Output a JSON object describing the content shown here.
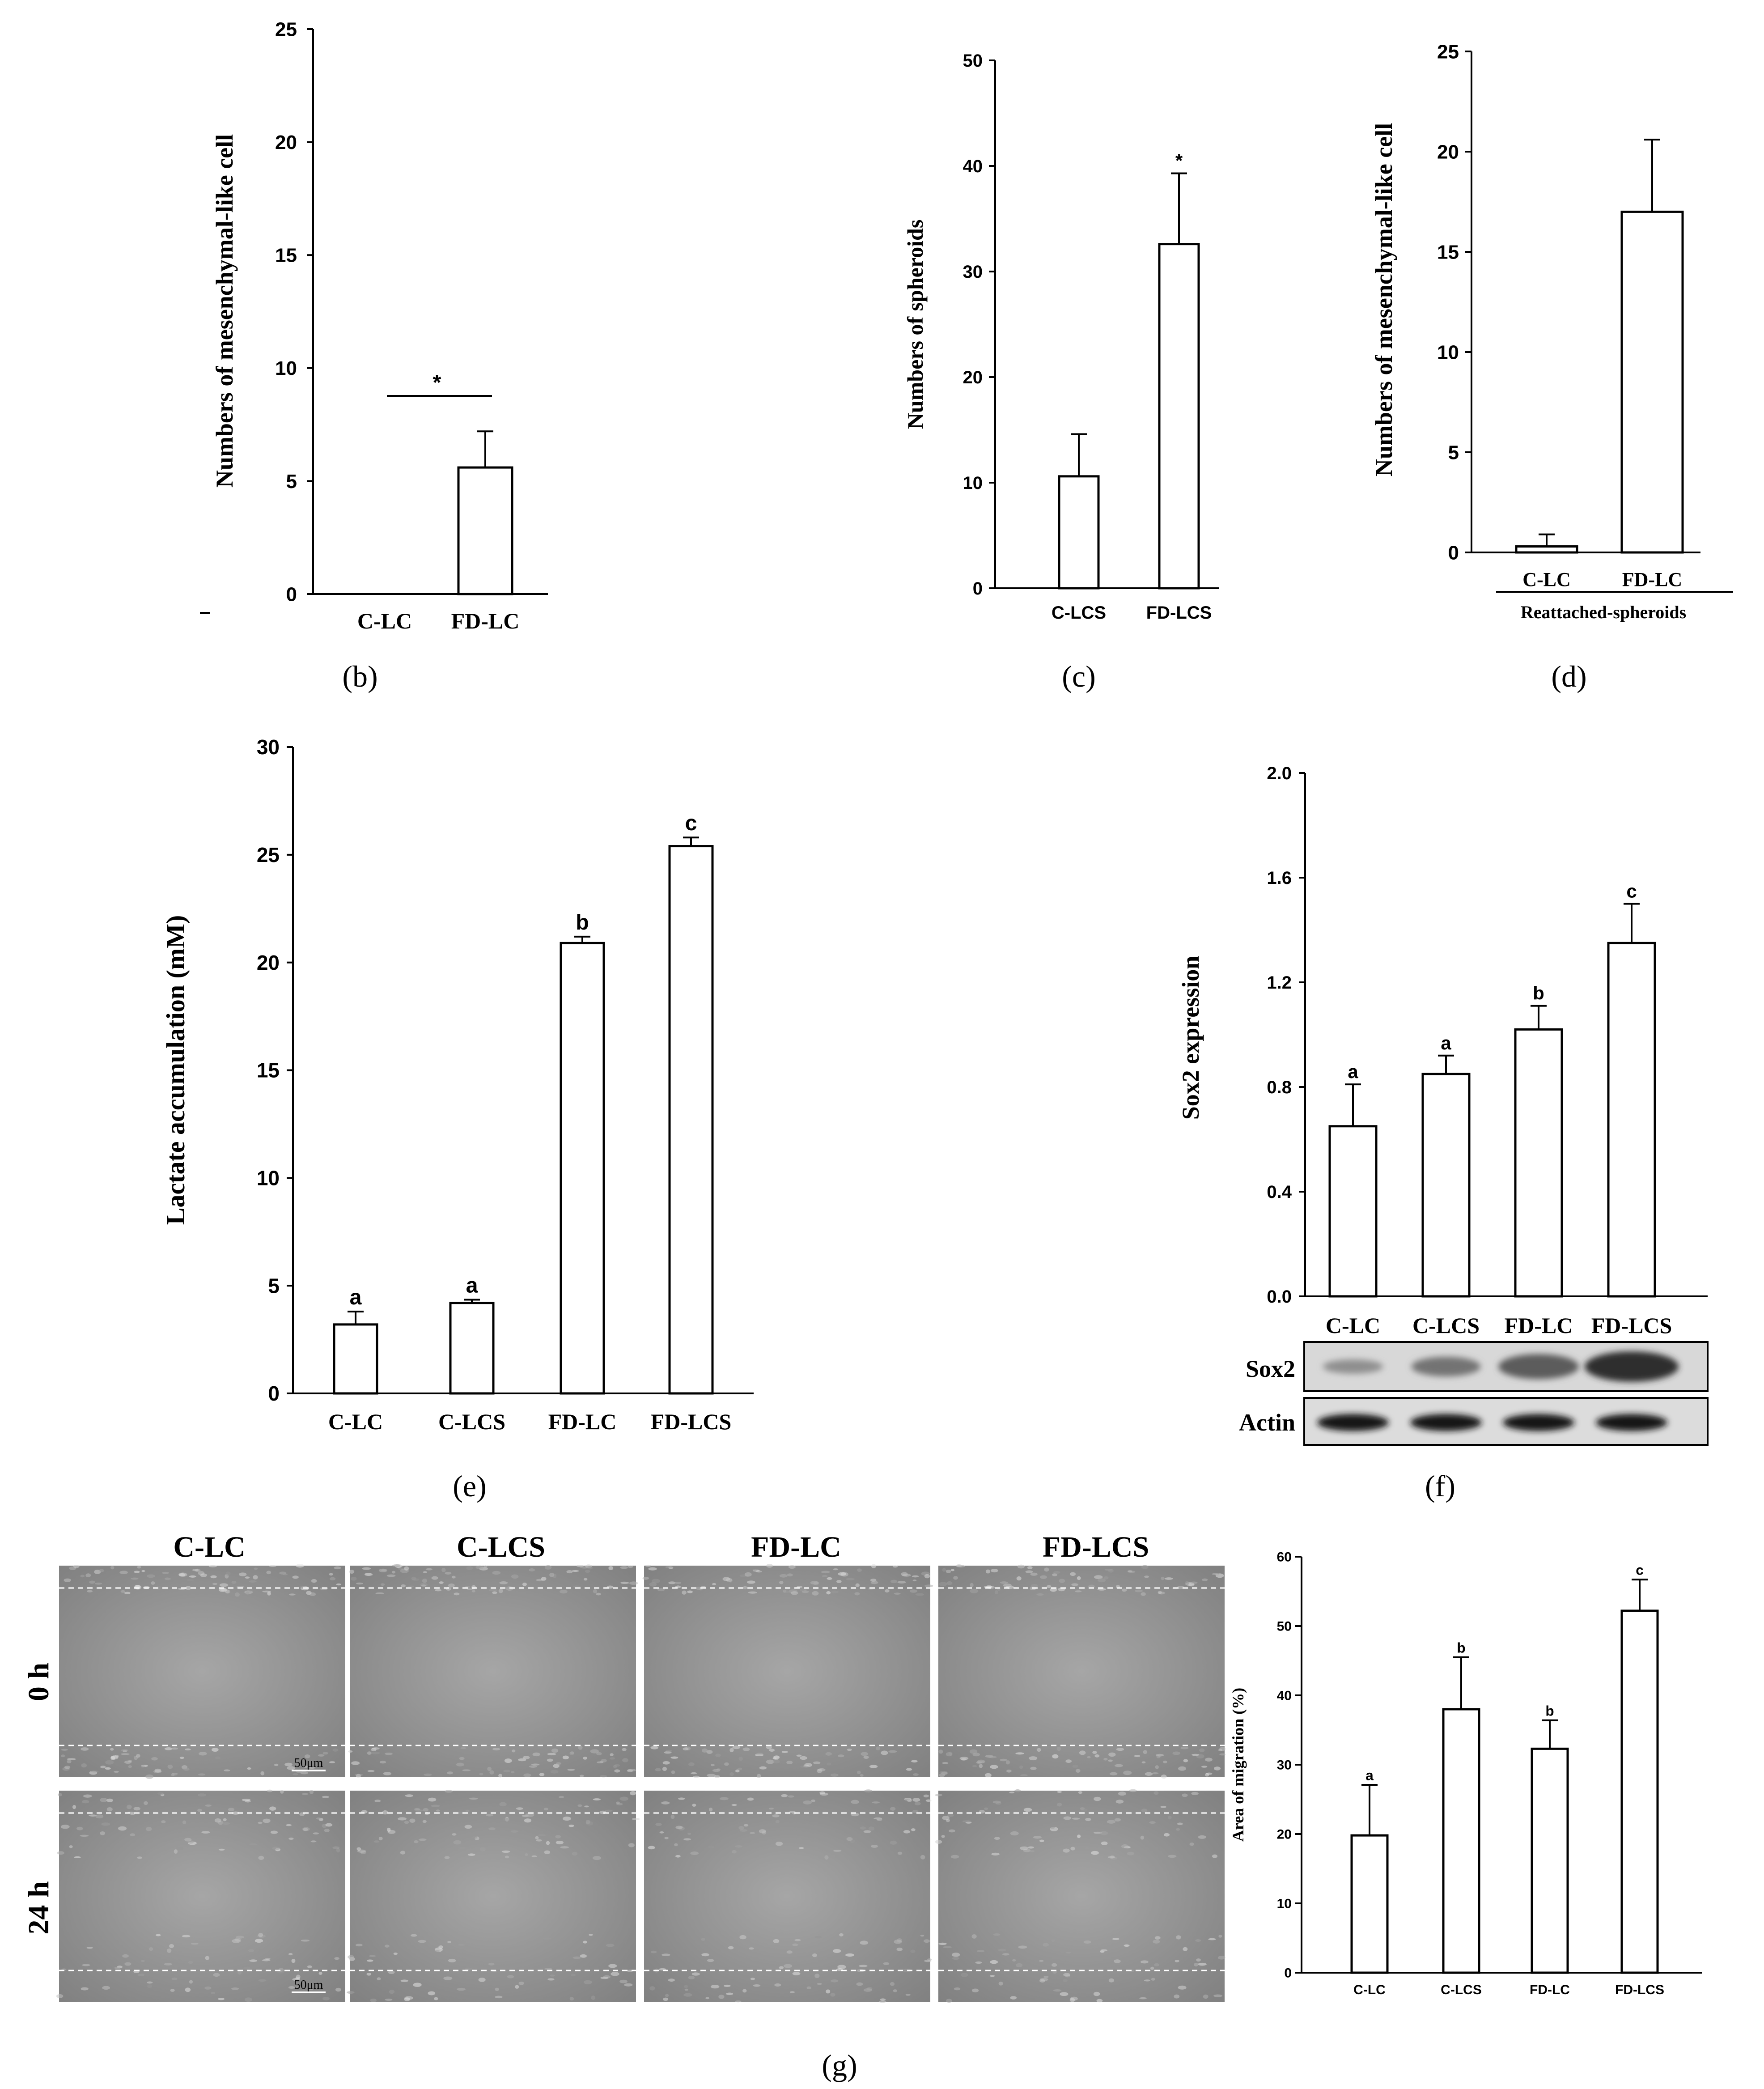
{
  "panel_labels": {
    "b": "(b)",
    "c": "(c)",
    "d": "(d)",
    "e": "(e)",
    "f": "(f)",
    "g": "(g)"
  },
  "blot": {
    "rows": [
      "Sox2",
      "Actin"
    ],
    "lanes": [
      "C-LC",
      "C-LCS",
      "FD-LC",
      "FD-LCS"
    ]
  },
  "micrographs": {
    "columns": [
      "C-LC",
      "C-LCS",
      "FD-LC",
      "FD-LCS"
    ],
    "rows": [
      "0 h",
      "24 h"
    ],
    "scale_bar": "50μm"
  },
  "chart_data": [
    {
      "id": "b",
      "type": "bar",
      "ylabel": "Numbers of mesenchymal-like cell",
      "ylim": [
        0,
        25
      ],
      "yticks": [
        0,
        5,
        10,
        15,
        20,
        25
      ],
      "categories": [
        "C-LC",
        "FD-LC"
      ],
      "values": [
        0,
        5.6
      ],
      "errors": [
        0,
        1.6
      ],
      "annotations": [
        {
          "text": "*",
          "type": "bracket",
          "over": [
            0,
            1
          ]
        }
      ]
    },
    {
      "id": "c",
      "type": "bar",
      "ylabel": "Numbers of spheroids",
      "ylim": [
        0,
        50
      ],
      "yticks": [
        0,
        10,
        20,
        30,
        40,
        50
      ],
      "categories": [
        "C-LCS",
        "FD-LCS"
      ],
      "values": [
        10.6,
        32.6
      ],
      "errors": [
        4.0,
        6.7
      ],
      "bar_labels": [
        "",
        "*"
      ]
    },
    {
      "id": "d",
      "type": "bar",
      "ylabel": "Numbers of mesenchymal-like cell",
      "ylim": [
        0,
        25
      ],
      "yticks": [
        0,
        5,
        10,
        15,
        20,
        25
      ],
      "categories": [
        "C-LC",
        "FD-LC"
      ],
      "values": [
        0.3,
        17.0
      ],
      "errors": [
        0.6,
        3.6
      ],
      "group_label": "Reattached-spheroids"
    },
    {
      "id": "e",
      "type": "bar",
      "ylabel": "Lactate accumulation (mM)",
      "ylim": [
        0,
        30
      ],
      "yticks": [
        0,
        5,
        10,
        15,
        20,
        25,
        30
      ],
      "categories": [
        "C-LC",
        "C-LCS",
        "FD-LC",
        "FD-LCS"
      ],
      "values": [
        3.2,
        4.2,
        20.9,
        25.4
      ],
      "errors": [
        0.6,
        0.15,
        0.3,
        0.4
      ],
      "bar_labels": [
        "a",
        "a",
        "b",
        "c"
      ]
    },
    {
      "id": "f",
      "type": "bar",
      "ylabel": "Sox2 expression",
      "ylim": [
        0,
        2.0
      ],
      "yticks": [
        "0.0",
        "0.4",
        "0.8",
        "1.2",
        "1.6",
        "2.0"
      ],
      "categories": [
        "C-LC",
        "C-LCS",
        "FD-LC",
        "FD-LCS"
      ],
      "values": [
        0.65,
        0.85,
        1.02,
        1.35
      ],
      "errors": [
        0.16,
        0.07,
        0.09,
        0.15
      ],
      "bar_labels": [
        "a",
        "a",
        "b",
        "c"
      ]
    },
    {
      "id": "g",
      "type": "bar",
      "ylabel": "Area of migration (%)",
      "ylim": [
        0,
        60
      ],
      "yticks": [
        0,
        10,
        20,
        30,
        40,
        50,
        60
      ],
      "categories": [
        "C-LC",
        "C-LCS",
        "FD-LC",
        "FD-LCS"
      ],
      "values": [
        19.8,
        38.0,
        32.3,
        52.2
      ],
      "errors": [
        7.3,
        7.5,
        4.1,
        4.5
      ],
      "bar_labels": [
        "a",
        "b",
        "b",
        "c"
      ]
    }
  ]
}
